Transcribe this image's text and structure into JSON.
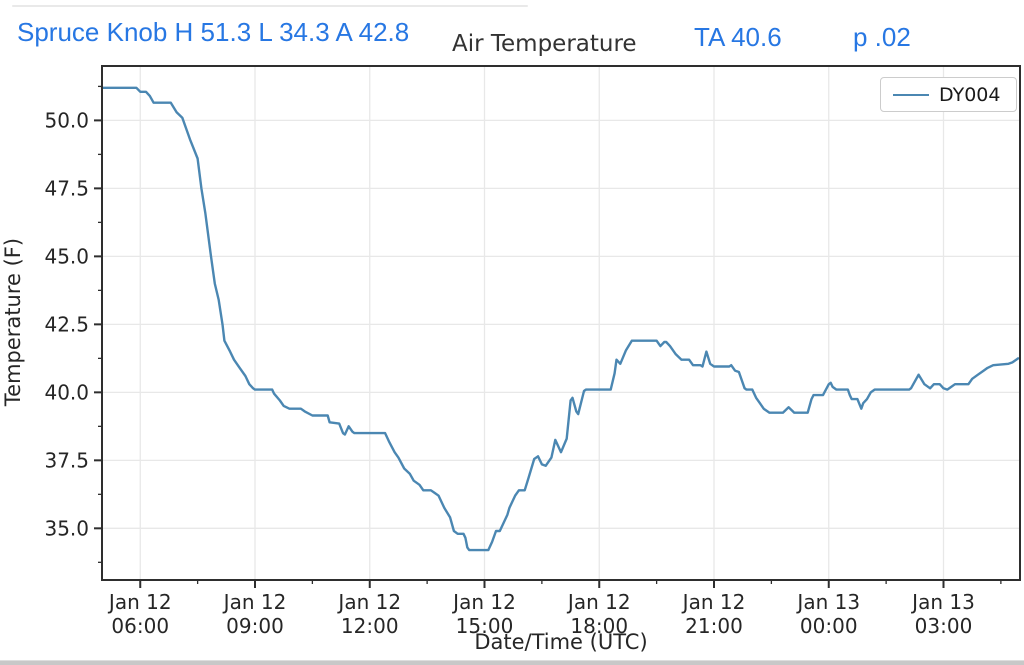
{
  "header": {
    "station_stats": "Spruce Knob H 51.3 L 34.3 A 42.8",
    "ta": "TA 40.6",
    "p": "p .02",
    "text_color": "#2777e3"
  },
  "colors": {
    "line": "#4b87b2",
    "grid": "#e8e8e8",
    "spine": "#2e2e2e",
    "tick_label": "#262626",
    "title": "#333333"
  },
  "chart_data": {
    "type": "line",
    "title": "Air Temperature",
    "xlabel": "Date/Time (UTC)",
    "ylabel": "Temperature (F)",
    "x_unit": "hours_since_Jan12_05:00_UTC",
    "xlim": [
      0,
      24
    ],
    "ylim": [
      33.1,
      52.0
    ],
    "grid": true,
    "yticks": [
      35.0,
      37.5,
      40.0,
      42.5,
      45.0,
      47.5,
      50.0
    ],
    "ytick_labels": [
      "35.0",
      "37.5",
      "40.0",
      "42.5",
      "45.0",
      "47.5",
      "50.0"
    ],
    "yticks_minor": [
      33.75,
      36.25,
      38.75,
      41.25,
      43.75,
      46.25,
      48.75,
      51.25
    ],
    "xticks": [
      {
        "t": 1,
        "line1": "Jan 12",
        "line2": "06:00"
      },
      {
        "t": 4,
        "line1": "Jan 12",
        "line2": "09:00"
      },
      {
        "t": 7,
        "line1": "Jan 12",
        "line2": "12:00"
      },
      {
        "t": 10,
        "line1": "Jan 12",
        "line2": "15:00"
      },
      {
        "t": 13,
        "line1": "Jan 12",
        "line2": "18:00"
      },
      {
        "t": 16,
        "line1": "Jan 12",
        "line2": "21:00"
      },
      {
        "t": 19,
        "line1": "Jan 13",
        "line2": "00:00"
      },
      {
        "t": 22,
        "line1": "Jan 13",
        "line2": "03:00"
      }
    ],
    "xticks_minor": [
      2.5,
      5.5,
      8.5,
      11.5,
      14.5,
      17.5,
      20.5,
      23.5
    ],
    "legend": {
      "position": "top-right"
    },
    "series": [
      {
        "name": "DY004",
        "color": "#4b87b2",
        "points": [
          [
            0,
            51.2
          ],
          [
            0.9,
            51.2
          ],
          [
            1.0,
            51.05
          ],
          [
            1.15,
            51.05
          ],
          [
            1.25,
            50.9
          ],
          [
            1.35,
            50.65
          ],
          [
            1.8,
            50.65
          ],
          [
            1.95,
            50.3
          ],
          [
            2.1,
            50.1
          ],
          [
            2.3,
            49.3
          ],
          [
            2.5,
            48.6
          ],
          [
            2.6,
            47.5
          ],
          [
            2.7,
            46.6
          ],
          [
            2.85,
            45.0
          ],
          [
            2.95,
            44.0
          ],
          [
            3.05,
            43.4
          ],
          [
            3.15,
            42.5
          ],
          [
            3.2,
            41.9
          ],
          [
            3.35,
            41.5
          ],
          [
            3.45,
            41.2
          ],
          [
            3.6,
            40.9
          ],
          [
            3.75,
            40.6
          ],
          [
            3.85,
            40.3
          ],
          [
            3.95,
            40.15
          ],
          [
            4.0,
            40.1
          ],
          [
            4.45,
            40.1
          ],
          [
            4.5,
            39.95
          ],
          [
            4.65,
            39.7
          ],
          [
            4.75,
            39.5
          ],
          [
            4.9,
            39.4
          ],
          [
            5.2,
            39.4
          ],
          [
            5.3,
            39.3
          ],
          [
            5.5,
            39.15
          ],
          [
            5.9,
            39.15
          ],
          [
            5.95,
            38.9
          ],
          [
            6.2,
            38.85
          ],
          [
            6.3,
            38.5
          ],
          [
            6.35,
            38.45
          ],
          [
            6.45,
            38.75
          ],
          [
            6.55,
            38.55
          ],
          [
            6.6,
            38.5
          ],
          [
            7.4,
            38.5
          ],
          [
            7.5,
            38.2
          ],
          [
            7.65,
            37.8
          ],
          [
            7.75,
            37.6
          ],
          [
            7.9,
            37.2
          ],
          [
            8.05,
            37.0
          ],
          [
            8.15,
            36.75
          ],
          [
            8.3,
            36.6
          ],
          [
            8.4,
            36.4
          ],
          [
            8.6,
            36.4
          ],
          [
            8.7,
            36.3
          ],
          [
            8.8,
            36.2
          ],
          [
            8.95,
            35.75
          ],
          [
            9.1,
            35.4
          ],
          [
            9.2,
            34.9
          ],
          [
            9.3,
            34.8
          ],
          [
            9.45,
            34.8
          ],
          [
            9.5,
            34.65
          ],
          [
            9.55,
            34.3
          ],
          [
            9.6,
            34.2
          ],
          [
            10.1,
            34.2
          ],
          [
            10.2,
            34.5
          ],
          [
            10.3,
            34.9
          ],
          [
            10.4,
            34.9
          ],
          [
            10.5,
            35.2
          ],
          [
            10.6,
            35.5
          ],
          [
            10.65,
            35.75
          ],
          [
            10.8,
            36.2
          ],
          [
            10.9,
            36.4
          ],
          [
            11.05,
            36.4
          ],
          [
            11.15,
            36.85
          ],
          [
            11.3,
            37.55
          ],
          [
            11.4,
            37.65
          ],
          [
            11.5,
            37.35
          ],
          [
            11.6,
            37.3
          ],
          [
            11.75,
            37.6
          ],
          [
            11.85,
            38.25
          ],
          [
            12.0,
            37.8
          ],
          [
            12.15,
            38.3
          ],
          [
            12.25,
            39.7
          ],
          [
            12.3,
            39.8
          ],
          [
            12.4,
            39.3
          ],
          [
            12.45,
            39.2
          ],
          [
            12.6,
            40.05
          ],
          [
            12.65,
            40.1
          ],
          [
            13.3,
            40.1
          ],
          [
            13.4,
            40.7
          ],
          [
            13.45,
            41.2
          ],
          [
            13.55,
            41.05
          ],
          [
            13.7,
            41.55
          ],
          [
            13.85,
            41.9
          ],
          [
            14.5,
            41.9
          ],
          [
            14.6,
            41.7
          ],
          [
            14.7,
            41.85
          ],
          [
            14.75,
            41.85
          ],
          [
            14.85,
            41.7
          ],
          [
            15.0,
            41.4
          ],
          [
            15.15,
            41.2
          ],
          [
            15.35,
            41.2
          ],
          [
            15.45,
            41.0
          ],
          [
            15.65,
            41.0
          ],
          [
            15.7,
            40.95
          ],
          [
            15.8,
            41.5
          ],
          [
            15.9,
            41.05
          ],
          [
            16.0,
            40.95
          ],
          [
            16.4,
            40.95
          ],
          [
            16.45,
            41.0
          ],
          [
            16.55,
            40.8
          ],
          [
            16.65,
            40.75
          ],
          [
            16.8,
            40.15
          ],
          [
            16.85,
            40.1
          ],
          [
            17.0,
            40.1
          ],
          [
            17.1,
            39.8
          ],
          [
            17.2,
            39.6
          ],
          [
            17.3,
            39.4
          ],
          [
            17.45,
            39.25
          ],
          [
            17.8,
            39.25
          ],
          [
            17.95,
            39.45
          ],
          [
            18.1,
            39.25
          ],
          [
            18.45,
            39.25
          ],
          [
            18.55,
            39.75
          ],
          [
            18.6,
            39.9
          ],
          [
            18.85,
            39.9
          ],
          [
            19.0,
            40.3
          ],
          [
            19.05,
            40.35
          ],
          [
            19.1,
            40.2
          ],
          [
            19.2,
            40.1
          ],
          [
            19.5,
            40.1
          ],
          [
            19.55,
            39.9
          ],
          [
            19.6,
            39.75
          ],
          [
            19.75,
            39.75
          ],
          [
            19.85,
            39.4
          ],
          [
            19.9,
            39.6
          ],
          [
            20.0,
            39.75
          ],
          [
            20.1,
            40.0
          ],
          [
            20.2,
            40.1
          ],
          [
            21.1,
            40.1
          ],
          [
            21.15,
            40.15
          ],
          [
            21.35,
            40.65
          ],
          [
            21.5,
            40.3
          ],
          [
            21.65,
            40.15
          ],
          [
            21.75,
            40.3
          ],
          [
            21.9,
            40.3
          ],
          [
            22.0,
            40.15
          ],
          [
            22.1,
            40.1
          ],
          [
            22.3,
            40.3
          ],
          [
            22.65,
            40.3
          ],
          [
            22.75,
            40.5
          ],
          [
            22.9,
            40.65
          ],
          [
            23.05,
            40.8
          ],
          [
            23.15,
            40.9
          ],
          [
            23.3,
            41.0
          ],
          [
            23.7,
            41.05
          ],
          [
            23.8,
            41.1
          ],
          [
            23.95,
            41.25
          ]
        ]
      }
    ]
  }
}
